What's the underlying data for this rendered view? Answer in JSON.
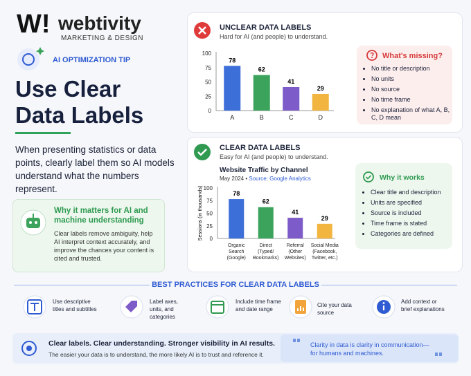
{
  "logo": {
    "mark": "W!",
    "name": "webtivity",
    "tagline": "MARKETING & DESIGN"
  },
  "tip_label": "AI OPTIMIZATION TIP",
  "title_lines": [
    "Use Clear",
    "Data Labels"
  ],
  "intro": "When presenting statistics or data points, clearly label them so AI models understand what the numbers represent.",
  "why_box": {
    "title": "Why it matters for AI and machine understanding",
    "text": "Clear labels remove ambiguity, help AI interpret context accurately, and improve the chances your content is cited and trusted."
  },
  "unclear": {
    "heading": "UNCLEAR DATA LABELS",
    "subheading": "Hard for AI (and people) to understand.",
    "chart": {
      "type": "bar",
      "categories": [
        "A",
        "B",
        "C",
        "D"
      ],
      "values": [
        78,
        62,
        41,
        29
      ],
      "colors": [
        "#3d6fd9",
        "#3ba35b",
        "#7d5bc8",
        "#f2b540"
      ],
      "ylim": [
        0,
        100
      ],
      "yticks": [
        0,
        25,
        50,
        75,
        100
      ]
    },
    "missing": {
      "title": "What's missing?",
      "items": [
        "No title or description",
        "No units",
        "No source",
        "No time frame",
        "No explanation of what A, B, C, D mean"
      ]
    }
  },
  "clear": {
    "heading": "CLEAR DATA LABELS",
    "subheading": "Easy for AI (and people) to understand.",
    "chart": {
      "type": "bar",
      "title": "Website Traffic by Channel",
      "subtitle": "May 2024 •",
      "source": "Source: Google Analytics",
      "y_label": "Sessions (in thousands)",
      "categories": [
        "Organic Search (Google)",
        "Direct (Typed/ Bookmarks)",
        "Referral (Other Websites)",
        "Social Media (Facebook, Twitter, etc.)"
      ],
      "values": [
        78,
        62,
        41,
        29
      ],
      "colors": [
        "#3d6fd9",
        "#3ba35b",
        "#7d5bc8",
        "#f2b540"
      ],
      "ylim": [
        0,
        100
      ],
      "yticks": [
        0,
        25,
        50,
        75,
        100
      ]
    },
    "works": {
      "title": "Why it works",
      "items": [
        "Clear title and description",
        "Units are specified",
        "Source is included",
        "Time frame is stated",
        "Categories are defined"
      ]
    }
  },
  "best_practices": {
    "title": "BEST PRACTICES FOR CLEAR DATA LABELS",
    "items": [
      "Use descriptive titles and subtitles",
      "Label axes, units, and categories",
      "Include time frame and date range",
      "Cite your data source",
      "Add context or brief explanations"
    ]
  },
  "banner": {
    "headline": "Clear labels. Clear understanding. Stronger visibility in AI results.",
    "text": "The easier your data is to understand, the more likely AI is to trust and reference it."
  },
  "quote": "Clarity in data is clarity in communication—for humans and machines."
}
